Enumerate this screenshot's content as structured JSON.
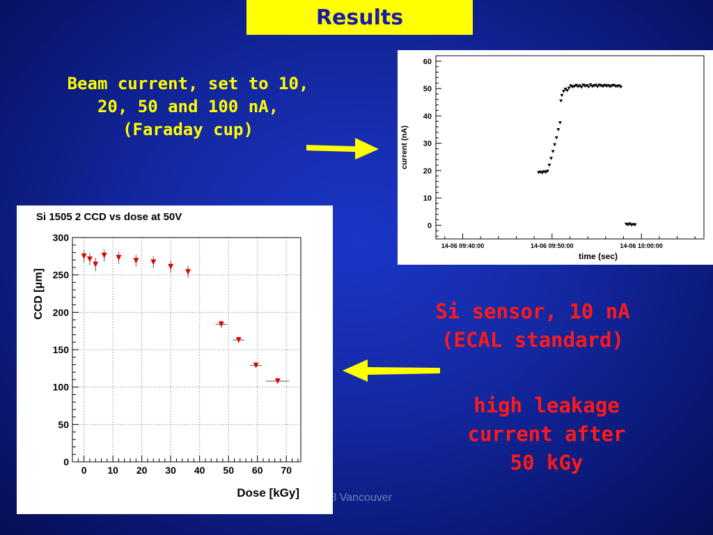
{
  "slide": {
    "title": "Results",
    "beam_text": [
      "Beam current, set to 10,",
      "20, 50 and 100  nA,",
      "(Faraday cup)"
    ],
    "sensor_text": [
      "Si sensor, 10 nA",
      "(ECAL standard)"
    ],
    "leakage_text": [
      "high leakage",
      "current after",
      "50 kGy"
    ],
    "footer": "/8 Vancouver",
    "colors": {
      "title_bg": "#ffff00",
      "title_fg": "#1a1aa8",
      "arrow": "#ffff00",
      "yellow_text": "#ffff00",
      "red_text": "#ff1a1a"
    }
  },
  "chart_data": [
    {
      "type": "scatter",
      "title": "",
      "xlabel": "time (sec)",
      "ylabel": "current (nA)",
      "x_tick_labels": [
        "14-06 09:40:00",
        "14-06 09:50:00",
        "14-06 10:00:00"
      ],
      "x_ticks_min": [
        0,
        10,
        20
      ],
      "xlim_min": [
        -3,
        27
      ],
      "ylim": [
        -5,
        62
      ],
      "y_ticks": [
        0,
        10,
        20,
        30,
        40,
        50,
        60
      ],
      "points_min_nA": [
        [
          8.5,
          19.3
        ],
        [
          8.7,
          19.5
        ],
        [
          8.9,
          19.2
        ],
        [
          9.1,
          19.6
        ],
        [
          9.3,
          19.4
        ],
        [
          9.5,
          19.8
        ],
        [
          9.7,
          22
        ],
        [
          9.9,
          24.5
        ],
        [
          10.1,
          27
        ],
        [
          10.3,
          29.5
        ],
        [
          10.5,
          32
        ],
        [
          10.7,
          35
        ],
        [
          10.9,
          37.5
        ],
        [
          11.0,
          45.5
        ],
        [
          11.1,
          47.5
        ],
        [
          11.3,
          49
        ],
        [
          11.5,
          49.8
        ],
        [
          11.7,
          49.3
        ],
        [
          11.9,
          50.2
        ],
        [
          12.1,
          51
        ],
        [
          12.3,
          50.6
        ],
        [
          12.5,
          50.8
        ],
        [
          12.7,
          51.2
        ],
        [
          12.9,
          50.7
        ],
        [
          13.1,
          51.0
        ],
        [
          13.3,
          50.5
        ],
        [
          13.5,
          51.3
        ],
        [
          13.7,
          50.9
        ],
        [
          13.9,
          51.1
        ],
        [
          14.1,
          50.6
        ],
        [
          14.3,
          51.4
        ],
        [
          14.5,
          50.8
        ],
        [
          14.7,
          51.0
        ],
        [
          14.9,
          51.2
        ],
        [
          15.1,
          50.7
        ],
        [
          15.3,
          51.3
        ],
        [
          15.5,
          51.0
        ],
        [
          15.7,
          50.8
        ],
        [
          15.9,
          51.2
        ],
        [
          16.1,
          50.9
        ],
        [
          16.3,
          51.1
        ],
        [
          16.5,
          50.7
        ],
        [
          16.7,
          51.0
        ],
        [
          16.9,
          51.2
        ],
        [
          17.1,
          50.9
        ],
        [
          17.3,
          50.8
        ],
        [
          17.5,
          51.0
        ],
        [
          17.7,
          50.6
        ],
        [
          18.3,
          0.4
        ],
        [
          18.5,
          0.2
        ],
        [
          18.7,
          0.5
        ],
        [
          18.9,
          0.1
        ],
        [
          19.1,
          0.3
        ],
        [
          19.3,
          0.2
        ]
      ]
    },
    {
      "type": "scatter",
      "title": "Si 1505 2 CCD vs dose at 50V",
      "xlabel": "Dose [kGy]",
      "ylabel": "CCD [μm]",
      "xlim": [
        -4,
        75
      ],
      "ylim": [
        0,
        300
      ],
      "x_ticks": [
        0,
        10,
        20,
        30,
        40,
        50,
        60,
        70
      ],
      "y_ticks": [
        0,
        50,
        100,
        150,
        200,
        250,
        300
      ],
      "points": [
        {
          "x": 0,
          "y": 275,
          "err": 8
        },
        {
          "x": 2,
          "y": 271,
          "err": 8
        },
        {
          "x": 4,
          "y": 264,
          "err": 9
        },
        {
          "x": 7,
          "y": 276,
          "err": 8
        },
        {
          "x": 12,
          "y": 273,
          "err": 8
        },
        {
          "x": 18,
          "y": 269,
          "err": 8
        },
        {
          "x": 24,
          "y": 267,
          "err": 8
        },
        {
          "x": 30,
          "y": 261,
          "err": 8
        },
        {
          "x": 36,
          "y": 254,
          "err": 8
        },
        {
          "x": 47.5,
          "y": 184,
          "err": 5
        },
        {
          "x": 53.5,
          "y": 163,
          "err": 4
        },
        {
          "x": 59.5,
          "y": 129,
          "err": 3
        },
        {
          "x": 67,
          "y": 108,
          "err": 3
        }
      ]
    }
  ]
}
